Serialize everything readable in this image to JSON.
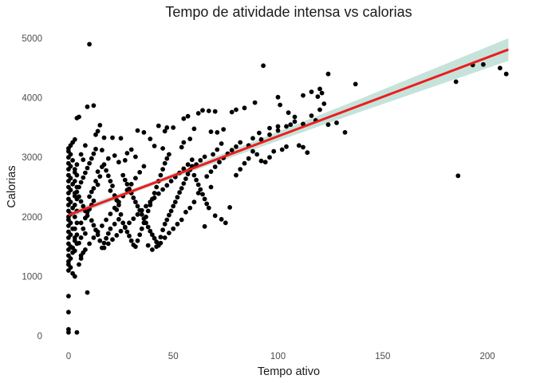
{
  "chart_data": {
    "type": "scatter",
    "title": "Tempo de atividade intensa vs calorias",
    "xlabel": "Tempo ativo",
    "ylabel": "Calorias",
    "xlim": [
      -3,
      211
    ],
    "ylim": [
      -120,
      5080
    ],
    "xticks": [
      0,
      50,
      100,
      150,
      200
    ],
    "yticks": [
      0,
      1000,
      2000,
      3000,
      4000,
      5000
    ],
    "grid": false,
    "legend": "none",
    "colors": {
      "points": "#000000",
      "fit_line": "#ee1c1c",
      "confidence_band": "#b7dcd2"
    },
    "regression": {
      "x": [
        0,
        210
      ],
      "y": [
        2030,
        4810
      ],
      "band_halfwidth_at_x": [
        [
          0,
          55
        ],
        [
          40,
          35
        ],
        [
          80,
          60
        ],
        [
          140,
          110
        ],
        [
          210,
          190
        ]
      ]
    },
    "points": [
      [
        10,
        4900
      ],
      [
        93,
        4540
      ],
      [
        124,
        4400
      ],
      [
        137,
        4230
      ],
      [
        120,
        4150
      ],
      [
        116,
        4100
      ],
      [
        121,
        4080
      ],
      [
        119,
        4020
      ],
      [
        112,
        4040
      ],
      [
        100,
        4010
      ],
      [
        89,
        3920
      ],
      [
        84,
        3830
      ],
      [
        80,
        3800
      ],
      [
        78,
        3760
      ],
      [
        70,
        3770
      ],
      [
        67,
        3780
      ],
      [
        64,
        3790
      ],
      [
        62,
        3740
      ],
      [
        57,
        3690
      ],
      [
        55,
        3650
      ],
      [
        50,
        3500
      ],
      [
        47,
        3500
      ],
      [
        43,
        3530
      ],
      [
        46,
        3440
      ],
      [
        36,
        3420
      ],
      [
        33,
        3450
      ],
      [
        25,
        3320
      ],
      [
        21,
        3330
      ],
      [
        17,
        3330
      ],
      [
        13,
        3380
      ],
      [
        12,
        3870
      ],
      [
        9,
        3850
      ],
      [
        5,
        3680
      ],
      [
        4,
        3660
      ],
      [
        15,
        3540
      ],
      [
        14,
        3440
      ],
      [
        101,
        3880
      ],
      [
        105,
        3750
      ],
      [
        108,
        3680
      ],
      [
        112,
        3560
      ],
      [
        118,
        3620
      ],
      [
        124,
        3550
      ],
      [
        128,
        3580
      ],
      [
        132,
        3420
      ],
      [
        106,
        3550
      ],
      [
        100,
        3520
      ],
      [
        96,
        3490
      ],
      [
        91,
        3410
      ],
      [
        88,
        3320
      ],
      [
        82,
        3250
      ],
      [
        73,
        3230
      ],
      [
        74,
        3470
      ],
      [
        71,
        3420
      ],
      [
        68,
        3430
      ],
      [
        60,
        3480
      ],
      [
        58,
        3310
      ],
      [
        55,
        3250
      ],
      [
        54,
        3170
      ],
      [
        48,
        3050
      ],
      [
        45,
        3150
      ],
      [
        39,
        3310
      ],
      [
        41,
        3190
      ],
      [
        30,
        3130
      ],
      [
        32,
        3010
      ],
      [
        28,
        3070
      ],
      [
        27,
        2950
      ],
      [
        24,
        2920
      ],
      [
        22,
        3030
      ],
      [
        19,
        2980
      ],
      [
        16,
        3120
      ],
      [
        3,
        3300
      ],
      [
        2,
        3250
      ],
      [
        1,
        3200
      ],
      [
        0,
        3150
      ],
      [
        0,
        3100
      ],
      [
        1,
        3050
      ],
      [
        0,
        3000
      ],
      [
        2,
        2950
      ],
      [
        0,
        2900
      ],
      [
        1,
        2850
      ],
      [
        0,
        2800
      ],
      [
        3,
        2750
      ],
      [
        0,
        2700
      ],
      [
        1,
        2650
      ],
      [
        0,
        2600
      ],
      [
        2,
        2550
      ],
      [
        0,
        2500
      ],
      [
        1,
        2450
      ],
      [
        0,
        2400
      ],
      [
        3,
        2350
      ],
      [
        0,
        2300
      ],
      [
        1,
        2250
      ],
      [
        0,
        2200
      ],
      [
        2,
        2150
      ],
      [
        0,
        2100
      ],
      [
        1,
        2050
      ],
      [
        0,
        2000
      ],
      [
        0,
        1950
      ],
      [
        1,
        1900
      ],
      [
        0,
        1850
      ],
      [
        2,
        1800
      ],
      [
        0,
        1750
      ],
      [
        1,
        1700
      ],
      [
        0,
        1650
      ],
      [
        3,
        1600
      ],
      [
        0,
        1550
      ],
      [
        1,
        1500
      ],
      [
        0,
        1450
      ],
      [
        2,
        1400
      ],
      [
        0,
        1350
      ],
      [
        1,
        1300
      ],
      [
        0,
        1250
      ],
      [
        0,
        1200
      ],
      [
        1,
        1150
      ],
      [
        0,
        1100
      ],
      [
        2,
        1050
      ],
      [
        3,
        1000
      ],
      [
        0,
        670
      ],
      [
        0,
        400
      ],
      [
        9,
        730
      ],
      [
        0,
        110
      ],
      [
        0,
        60
      ],
      [
        4,
        60
      ],
      [
        5,
        1200
      ],
      [
        6,
        1300
      ],
      [
        7,
        1400
      ],
      [
        5,
        1560
      ],
      [
        6,
        1650
      ],
      [
        8,
        1720
      ],
      [
        7,
        1800
      ],
      [
        6,
        1900
      ],
      [
        8,
        1980
      ],
      [
        9,
        2080
      ],
      [
        10,
        2130
      ],
      [
        11,
        2200
      ],
      [
        12,
        2270
      ],
      [
        10,
        2340
      ],
      [
        11,
        2420
      ],
      [
        12,
        2480
      ],
      [
        14,
        2540
      ],
      [
        13,
        2600
      ],
      [
        15,
        2680
      ],
      [
        14,
        2760
      ],
      [
        16,
        2840
      ],
      [
        17,
        2880
      ],
      [
        18,
        2780
      ],
      [
        19,
        2690
      ],
      [
        20,
        2600
      ],
      [
        21,
        2520
      ],
      [
        20,
        2440
      ],
      [
        22,
        2360
      ],
      [
        23,
        2280
      ],
      [
        24,
        2200
      ],
      [
        23,
        2120
      ],
      [
        25,
        2040
      ],
      [
        24,
        1960
      ],
      [
        22,
        1880
      ],
      [
        20,
        1800
      ],
      [
        19,
        1720
      ],
      [
        18,
        1640
      ],
      [
        17,
        1560
      ],
      [
        16,
        1480
      ],
      [
        15,
        1600
      ],
      [
        14,
        1700
      ],
      [
        13,
        1780
      ],
      [
        12,
        1860
      ],
      [
        11,
        1940
      ],
      [
        9,
        2020
      ],
      [
        8,
        2100
      ],
      [
        7,
        2180
      ],
      [
        6,
        2260
      ],
      [
        5,
        2340
      ],
      [
        4,
        2420
      ],
      [
        5,
        2500
      ],
      [
        6,
        2580
      ],
      [
        7,
        2660
      ],
      [
        8,
        2740
      ],
      [
        9,
        2820
      ],
      [
        10,
        2900
      ],
      [
        11,
        2980
      ],
      [
        12,
        3060
      ],
      [
        13,
        3140
      ],
      [
        6,
        3050
      ],
      [
        7,
        2960
      ],
      [
        8,
        3200
      ],
      [
        4,
        2880
      ],
      [
        3,
        2800
      ],
      [
        4,
        2700
      ],
      [
        3,
        2600
      ],
      [
        4,
        2500
      ],
      [
        3,
        2400
      ],
      [
        4,
        2300
      ],
      [
        3,
        2200
      ],
      [
        4,
        2100
      ],
      [
        3,
        2000
      ],
      [
        4,
        1900
      ],
      [
        3,
        1800
      ],
      [
        4,
        1700
      ],
      [
        3,
        1650
      ],
      [
        4,
        1550
      ],
      [
        2,
        1480
      ],
      [
        3,
        1430
      ],
      [
        26,
        2700
      ],
      [
        27,
        2620
      ],
      [
        28,
        2550
      ],
      [
        29,
        2470
      ],
      [
        30,
        2400
      ],
      [
        31,
        2320
      ],
      [
        32,
        2250
      ],
      [
        33,
        2180
      ],
      [
        34,
        2110
      ],
      [
        35,
        2040
      ],
      [
        36,
        1970
      ],
      [
        37,
        1900
      ],
      [
        38,
        1830
      ],
      [
        39,
        1760
      ],
      [
        40,
        1700
      ],
      [
        41,
        1640
      ],
      [
        42,
        1580
      ],
      [
        43,
        1520
      ],
      [
        44,
        1660
      ],
      [
        45,
        1780
      ],
      [
        46,
        1880
      ],
      [
        47,
        1950
      ],
      [
        48,
        2030
      ],
      [
        49,
        2100
      ],
      [
        50,
        2180
      ],
      [
        51,
        2250
      ],
      [
        52,
        2330
      ],
      [
        53,
        2410
      ],
      [
        54,
        2480
      ],
      [
        55,
        2560
      ],
      [
        56,
        2640
      ],
      [
        57,
        2720
      ],
      [
        58,
        2790
      ],
      [
        59,
        2850
      ],
      [
        60,
        2700
      ],
      [
        61,
        2620
      ],
      [
        62,
        2540
      ],
      [
        63,
        2460
      ],
      [
        64,
        2380
      ],
      [
        65,
        2300
      ],
      [
        66,
        2220
      ],
      [
        67,
        2150
      ],
      [
        26,
        1900
      ],
      [
        27,
        1820
      ],
      [
        28,
        1750
      ],
      [
        29,
        1680
      ],
      [
        30,
        1600
      ],
      [
        31,
        1530
      ],
      [
        32,
        1500
      ],
      [
        33,
        1600
      ],
      [
        34,
        1700
      ],
      [
        35,
        1800
      ],
      [
        36,
        1900
      ],
      [
        37,
        2000
      ],
      [
        38,
        2100
      ],
      [
        39,
        2200
      ],
      [
        40,
        2300
      ],
      [
        41,
        2400
      ],
      [
        42,
        2500
      ],
      [
        43,
        2600
      ],
      [
        44,
        2700
      ],
      [
        45,
        2800
      ],
      [
        46,
        2900
      ],
      [
        47,
        2980
      ],
      [
        36,
        2850
      ],
      [
        34,
        2750
      ],
      [
        32,
        2650
      ],
      [
        30,
        2550
      ],
      [
        28,
        2450
      ],
      [
        26,
        2350
      ],
      [
        24,
        2250
      ],
      [
        22,
        2150
      ],
      [
        20,
        2050
      ],
      [
        18,
        1950
      ],
      [
        16,
        1850
      ],
      [
        14,
        1750
      ],
      [
        12,
        1650
      ],
      [
        10,
        1550
      ],
      [
        8,
        1450
      ],
      [
        6,
        1350
      ],
      [
        66,
        2680
      ],
      [
        68,
        2760
      ],
      [
        70,
        2840
      ],
      [
        72,
        2920
      ],
      [
        74,
        2990
      ],
      [
        76,
        3060
      ],
      [
        78,
        3120
      ],
      [
        80,
        3180
      ],
      [
        69,
        3050
      ],
      [
        71,
        3130
      ],
      [
        63,
        2950
      ],
      [
        65,
        3010
      ],
      [
        61,
        2880
      ],
      [
        59,
        2960
      ],
      [
        57,
        2880
      ],
      [
        55,
        2810
      ],
      [
        53,
        2740
      ],
      [
        51,
        2670
      ],
      [
        49,
        2600
      ],
      [
        47,
        2530
      ],
      [
        45,
        2460
      ],
      [
        43,
        2390
      ],
      [
        41,
        2320
      ],
      [
        39,
        2250
      ],
      [
        37,
        2180
      ],
      [
        35,
        2110
      ],
      [
        33,
        2040
      ],
      [
        31,
        1970
      ],
      [
        29,
        1900
      ],
      [
        27,
        1830
      ],
      [
        25,
        1760
      ],
      [
        23,
        1690
      ],
      [
        21,
        1620
      ],
      [
        19,
        1550
      ],
      [
        17,
        1480
      ],
      [
        65,
        1840
      ],
      [
        70,
        2020
      ],
      [
        73,
        1960
      ],
      [
        75,
        1900
      ],
      [
        77,
        2160
      ],
      [
        68,
        2500
      ],
      [
        62,
        2400
      ],
      [
        60,
        2250
      ],
      [
        58,
        2150
      ],
      [
        56,
        2080
      ],
      [
        54,
        1950
      ],
      [
        52,
        1880
      ],
      [
        50,
        1800
      ],
      [
        48,
        1730
      ],
      [
        46,
        1650
      ],
      [
        44,
        1560
      ],
      [
        42,
        1500
      ],
      [
        40,
        1450
      ],
      [
        38,
        1520
      ],
      [
        80,
        2700
      ],
      [
        82,
        2800
      ],
      [
        84,
        2900
      ],
      [
        86,
        2980
      ],
      [
        90,
        3050
      ],
      [
        92,
        2940
      ],
      [
        94,
        2920
      ],
      [
        96,
        3000
      ],
      [
        98,
        3100
      ],
      [
        102,
        3130
      ],
      [
        104,
        3180
      ],
      [
        110,
        3200
      ],
      [
        112,
        3170
      ],
      [
        114,
        3080
      ],
      [
        86,
        3200
      ],
      [
        88,
        3100
      ],
      [
        92,
        3300
      ],
      [
        96,
        3380
      ],
      [
        100,
        3450
      ],
      [
        104,
        3520
      ],
      [
        108,
        3600
      ],
      [
        116,
        3700
      ],
      [
        120,
        3800
      ],
      [
        122,
        3900
      ],
      [
        185,
        4270
      ],
      [
        193,
        4550
      ],
      [
        198,
        4560
      ],
      [
        206,
        4500
      ],
      [
        209,
        4400
      ],
      [
        186,
        2690
      ]
    ]
  }
}
